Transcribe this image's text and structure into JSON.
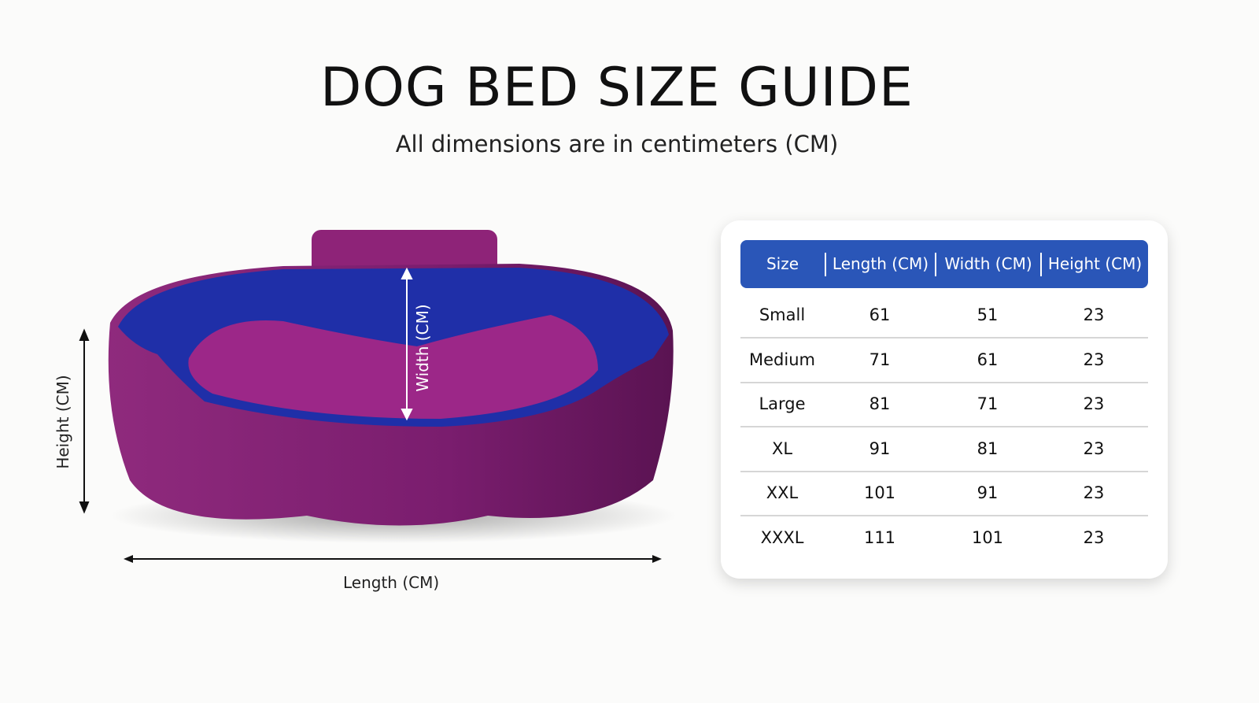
{
  "title": "DOG BED SIZE GUIDE",
  "subtitle": "All dimensions are in centimeters (CM)",
  "diagram": {
    "height_label": "Height (CM)",
    "width_label": "Width (CM)",
    "length_label": "Length (CM)",
    "colors": {
      "outer": "#8a1f7a",
      "inner": "#1f2fa8",
      "cushion": "#a02a8a"
    }
  },
  "table": {
    "header_color": "#2a56b8",
    "headers": [
      "Size",
      "Length (CM)",
      "Width (CM)",
      "Height (CM)"
    ],
    "rows": [
      [
        "Small",
        "61",
        "51",
        "23"
      ],
      [
        "Medium",
        "71",
        "61",
        "23"
      ],
      [
        "Large",
        "81",
        "71",
        "23"
      ],
      [
        "XL",
        "91",
        "81",
        "23"
      ],
      [
        "XXL",
        "101",
        "91",
        "23"
      ],
      [
        "XXXL",
        "111",
        "101",
        "23"
      ]
    ]
  }
}
